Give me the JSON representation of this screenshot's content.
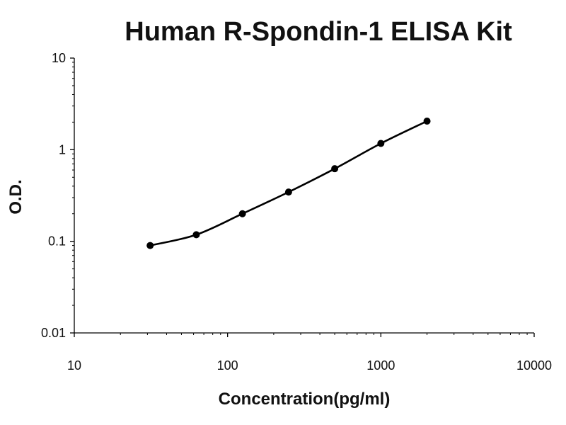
{
  "chart_data": {
    "type": "line",
    "title": "Human R-Spondin-1 ELISA Kit",
    "xlabel": "Concentration(pg/ml)",
    "ylabel": "O.D.",
    "x_scale": "log",
    "y_scale": "log",
    "xlim": [
      10,
      10000
    ],
    "ylim": [
      0.01,
      10
    ],
    "x_ticks": [
      "10",
      "100",
      "1000",
      "10000"
    ],
    "y_ticks": [
      "0.01",
      "0.1",
      "1",
      "10"
    ],
    "grid": false,
    "legend": "none",
    "series": [
      {
        "x": [
          31.25,
          62.5,
          125,
          250,
          500,
          1000,
          2000
        ],
        "y": [
          0.09,
          0.118,
          0.2,
          0.345,
          0.62,
          1.17,
          2.05
        ]
      }
    ],
    "colors": {
      "line": "#000000",
      "axis": "#000000"
    }
  }
}
